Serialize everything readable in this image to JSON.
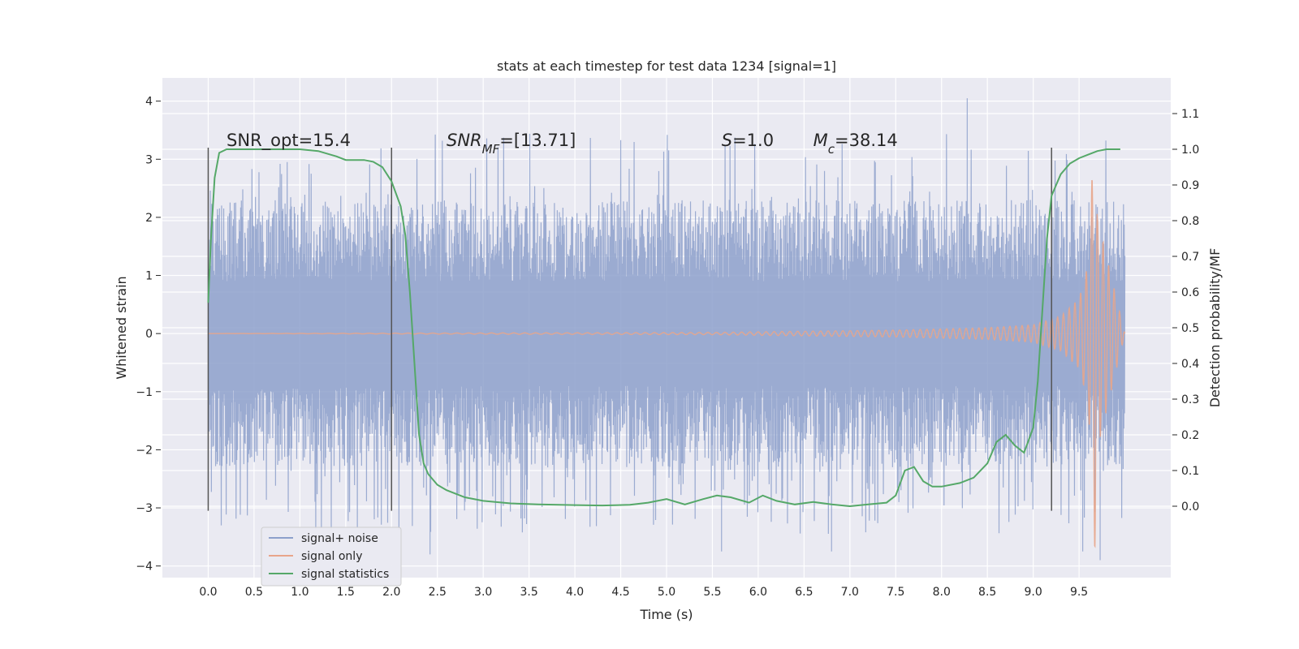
{
  "chart_data": {
    "type": "line",
    "title": "stats at each timestep for test data 1234 [signal=1]",
    "xlabel": "Time (s)",
    "ylabel_left": "Whitened strain",
    "ylabel_right": "Detection probability/MF",
    "xlim": [
      -0.5,
      10.5
    ],
    "ylim_left": [
      -4.2,
      4.4
    ],
    "ylim_right": [
      -0.2,
      1.2
    ],
    "xticks": [
      "0.0",
      "0.5",
      "1.0",
      "1.5",
      "2.0",
      "2.5",
      "3.0",
      "3.5",
      "4.0",
      "4.5",
      "5.0",
      "5.5",
      "6.0",
      "6.5",
      "7.0",
      "7.5",
      "8.0",
      "8.5",
      "9.0",
      "9.5"
    ],
    "yticks_left": [
      "−4",
      "−3",
      "−2",
      "−1",
      "0",
      "1",
      "2",
      "3",
      "4"
    ],
    "yticks_right": [
      "0.0",
      "0.1",
      "0.2",
      "0.3",
      "0.4",
      "0.5",
      "0.6",
      "0.7",
      "0.8",
      "0.9",
      "1.0",
      "1.1"
    ],
    "grid": true,
    "legend_position": "lower-left",
    "annotations": [
      {
        "label": "SNR_opt=15.4",
        "x": 0.2
      },
      {
        "label": "SNR",
        "sub": "MF",
        "suffix": "=[13.71]",
        "italic": true,
        "x": 2.6
      },
      {
        "label": "S",
        "suffix": "=1.0",
        "italic": true,
        "x": 5.6
      },
      {
        "label": "M",
        "sub": "c",
        "suffix": "=38.14",
        "italic": true,
        "x": 6.6
      }
    ],
    "vertical_lines_x": [
      0.0,
      2.0,
      9.2
    ],
    "series": [
      {
        "name": "signal+ noise",
        "axis": "left",
        "color": "#8da0cb",
        "x_range": [
          0.0,
          10.0
        ],
        "noise_envelope": {
          "typical_max": 2.3,
          "typical_min": -2.3,
          "peak_max": 4.05,
          "peak_min": -3.9
        }
      },
      {
        "name": "signal only",
        "axis": "left",
        "color": "#e8a58a",
        "x": [
          0.0,
          5.5,
          6.5,
          7.5,
          8.0,
          8.5,
          9.0,
          9.3,
          9.5,
          9.6,
          9.65,
          9.68,
          9.7,
          10.0
        ],
        "amplitude": [
          0.0,
          0.02,
          0.04,
          0.06,
          0.08,
          0.1,
          0.15,
          0.3,
          0.6,
          1.2,
          3.0,
          4.0,
          2.0,
          0.0
        ]
      },
      {
        "name": "signal statistics",
        "axis": "right",
        "color": "#55a868",
        "x": [
          0.0,
          0.03,
          0.07,
          0.12,
          0.2,
          0.35,
          0.6,
          1.0,
          1.2,
          1.4,
          1.5,
          1.6,
          1.7,
          1.8,
          1.9,
          2.0,
          2.1,
          2.15,
          2.2,
          2.25,
          2.3,
          2.35,
          2.4,
          2.5,
          2.6,
          2.8,
          3.0,
          3.3,
          3.6,
          4.0,
          4.3,
          4.6,
          4.8,
          5.0,
          5.2,
          5.4,
          5.55,
          5.7,
          5.9,
          6.05,
          6.2,
          6.4,
          6.6,
          6.8,
          7.0,
          7.2,
          7.4,
          7.5,
          7.6,
          7.7,
          7.8,
          7.9,
          8.0,
          8.2,
          8.35,
          8.5,
          8.6,
          8.7,
          8.8,
          8.9,
          9.0,
          9.05,
          9.1,
          9.15,
          9.2,
          9.3,
          9.4,
          9.5,
          9.6,
          9.7,
          9.8,
          9.9,
          9.95
        ],
        "values": [
          0.57,
          0.75,
          0.92,
          0.99,
          1.0,
          1.0,
          1.0,
          1.0,
          0.995,
          0.98,
          0.97,
          0.97,
          0.97,
          0.965,
          0.95,
          0.91,
          0.84,
          0.76,
          0.6,
          0.4,
          0.2,
          0.12,
          0.09,
          0.06,
          0.045,
          0.025,
          0.015,
          0.008,
          0.005,
          0.003,
          0.002,
          0.004,
          0.01,
          0.02,
          0.005,
          0.02,
          0.03,
          0.025,
          0.01,
          0.03,
          0.015,
          0.005,
          0.012,
          0.005,
          0.0,
          0.005,
          0.01,
          0.03,
          0.1,
          0.11,
          0.07,
          0.055,
          0.055,
          0.065,
          0.08,
          0.12,
          0.18,
          0.2,
          0.17,
          0.15,
          0.22,
          0.35,
          0.55,
          0.75,
          0.87,
          0.93,
          0.96,
          0.975,
          0.985,
          0.995,
          1.0,
          1.0,
          1.0
        ]
      }
    ]
  }
}
